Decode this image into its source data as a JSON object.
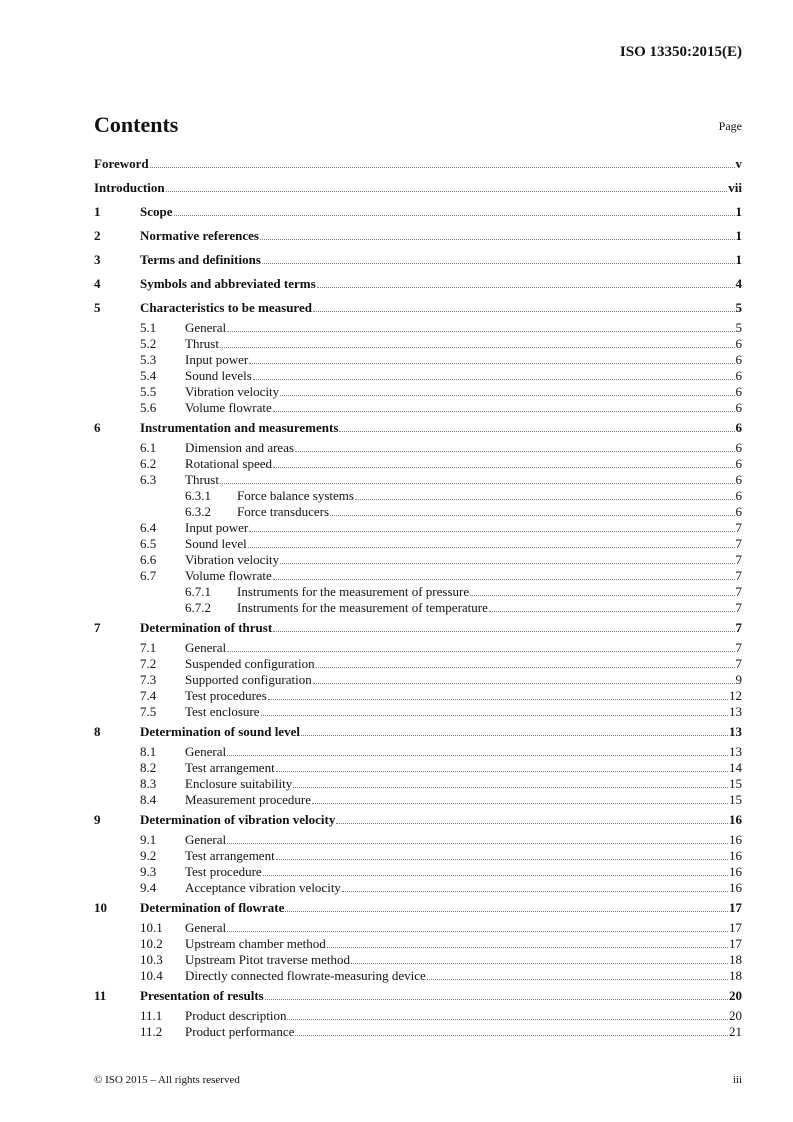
{
  "header": {
    "doc_id": "ISO 13350:2015(E)"
  },
  "title": "Contents",
  "page_label": "Page",
  "entries": [
    {
      "level": 0,
      "num": "",
      "text": "Foreword",
      "page": "v"
    },
    {
      "level": 0,
      "num": "",
      "text": "Introduction",
      "page": "vii"
    },
    {
      "level": 0,
      "num": "1",
      "text": "Scope",
      "page": "1"
    },
    {
      "level": 0,
      "num": "2",
      "text": "Normative references",
      "page": "1"
    },
    {
      "level": 0,
      "num": "3",
      "text": "Terms and definitions",
      "page": "1"
    },
    {
      "level": 0,
      "num": "4",
      "text": "Symbols and abbreviated terms",
      "page": "4"
    },
    {
      "level": 0,
      "num": "5",
      "text": "Characteristics to be measured",
      "page": "5"
    },
    {
      "level": 1,
      "num": "5.1",
      "text": "General",
      "page": "5"
    },
    {
      "level": 1,
      "num": "5.2",
      "text": "Thrust",
      "page": "6"
    },
    {
      "level": 1,
      "num": "5.3",
      "text": "Input power",
      "page": "6"
    },
    {
      "level": 1,
      "num": "5.4",
      "text": "Sound levels",
      "page": "6"
    },
    {
      "level": 1,
      "num": "5.5",
      "text": "Vibration velocity",
      "page": "6"
    },
    {
      "level": 1,
      "num": "5.6",
      "text": "Volume flowrate",
      "page": "6"
    },
    {
      "level": 0,
      "num": "6",
      "text": "Instrumentation and measurements",
      "page": "6"
    },
    {
      "level": 1,
      "num": "6.1",
      "text": "Dimension and areas",
      "page": "6"
    },
    {
      "level": 1,
      "num": "6.2",
      "text": "Rotational speed",
      "page": "6"
    },
    {
      "level": 1,
      "num": "6.3",
      "text": "Thrust",
      "page": "6"
    },
    {
      "level": 2,
      "num": "6.3.1",
      "text": "Force balance systems",
      "page": "6"
    },
    {
      "level": 2,
      "num": "6.3.2",
      "text": "Force transducers",
      "page": "6"
    },
    {
      "level": 1,
      "num": "6.4",
      "text": "Input power",
      "page": "7"
    },
    {
      "level": 1,
      "num": "6.5",
      "text": "Sound level",
      "page": "7"
    },
    {
      "level": 1,
      "num": "6.6",
      "text": "Vibration velocity",
      "page": "7"
    },
    {
      "level": 1,
      "num": "6.7",
      "text": "Volume flowrate",
      "page": "7"
    },
    {
      "level": 2,
      "num": "6.7.1",
      "text": "Instruments for the measurement of pressure",
      "page": "7"
    },
    {
      "level": 2,
      "num": "6.7.2",
      "text": "Instruments for the measurement of temperature",
      "page": "7"
    },
    {
      "level": 0,
      "num": "7",
      "text": "Determination of thrust",
      "page": "7"
    },
    {
      "level": 1,
      "num": "7.1",
      "text": "General",
      "page": "7"
    },
    {
      "level": 1,
      "num": "7.2",
      "text": "Suspended configuration",
      "page": "7"
    },
    {
      "level": 1,
      "num": "7.3",
      "text": "Supported configuration",
      "page": "9"
    },
    {
      "level": 1,
      "num": "7.4",
      "text": "Test procedures",
      "page": "12"
    },
    {
      "level": 1,
      "num": "7.5",
      "text": "Test enclosure",
      "page": "13"
    },
    {
      "level": 0,
      "num": "8",
      "text": "Determination of sound level",
      "page": "13"
    },
    {
      "level": 1,
      "num": "8.1",
      "text": "General",
      "page": "13"
    },
    {
      "level": 1,
      "num": "8.2",
      "text": "Test arrangement",
      "page": "14"
    },
    {
      "level": 1,
      "num": "8.3",
      "text": "Enclosure suitability",
      "page": "15"
    },
    {
      "level": 1,
      "num": "8.4",
      "text": "Measurement procedure",
      "page": "15"
    },
    {
      "level": 0,
      "num": "9",
      "text": "Determination of vibration velocity",
      "page": "16"
    },
    {
      "level": 1,
      "num": "9.1",
      "text": "General",
      "page": "16"
    },
    {
      "level": 1,
      "num": "9.2",
      "text": "Test arrangement",
      "page": "16"
    },
    {
      "level": 1,
      "num": "9.3",
      "text": "Test procedure",
      "page": "16"
    },
    {
      "level": 1,
      "num": "9.4",
      "text": "Acceptance vibration velocity",
      "page": "16"
    },
    {
      "level": 0,
      "num": "10",
      "text": "Determination of flowrate",
      "page": "17"
    },
    {
      "level": 1,
      "num": "10.1",
      "text": "General",
      "page": "17"
    },
    {
      "level": 1,
      "num": "10.2",
      "text": "Upstream chamber method",
      "page": "17"
    },
    {
      "level": 1,
      "num": "10.3",
      "text": "Upstream Pitot traverse method",
      "page": "18"
    },
    {
      "level": 1,
      "num": "10.4",
      "text": "Directly connected flowrate-measuring device",
      "page": "18"
    },
    {
      "level": 0,
      "num": "11",
      "text": "Presentation of results",
      "page": "20"
    },
    {
      "level": 1,
      "num": "11.1",
      "text": "Product description",
      "page": "20"
    },
    {
      "level": 1,
      "num": "11.2",
      "text": "Product performance",
      "page": "21"
    }
  ],
  "footer": {
    "copyright": "© ISO 2015 – All rights reserved",
    "page_number": "iii"
  }
}
